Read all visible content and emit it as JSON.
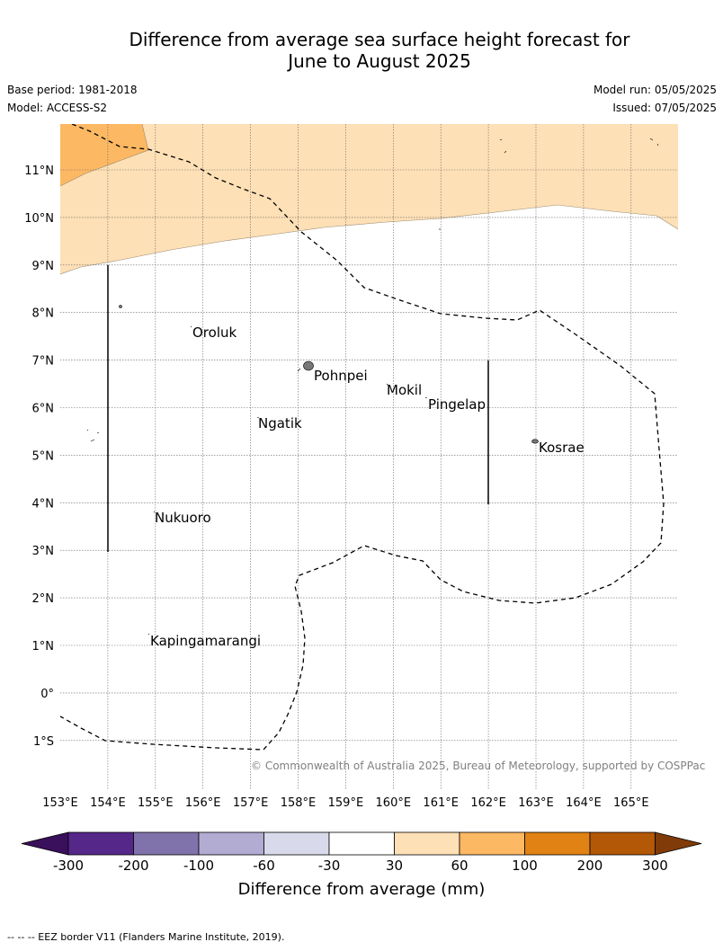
{
  "title": {
    "line1": "Difference from average sea surface height forecast for",
    "line2": "June to August 2025"
  },
  "meta": {
    "base_period": "Base period: 1981-2018",
    "model": "Model: ACCESS-S2",
    "model_run": "Model run: 05/05/2025",
    "issued": "Issued: 07/05/2025"
  },
  "map": {
    "lat_labels": [
      "11°N",
      "10°N",
      "9°N",
      "8°N",
      "7°N",
      "6°N",
      "5°N",
      "4°N",
      "3°N",
      "2°N",
      "1°N",
      "0°",
      "1°S"
    ],
    "lon_labels": [
      "153°E",
      "154°E",
      "155°E",
      "156°E",
      "157°E",
      "158°E",
      "159°E",
      "160°E",
      "161°E",
      "162°E",
      "163°E",
      "164°E",
      "165°E"
    ],
    "places": [
      "Oroluk",
      "Pohnpei",
      "Mokil",
      "Pingelap",
      "Ngatik",
      "Kosrae",
      "Nukuoro",
      "Kapingamarangi"
    ],
    "credit": "© Commonwealth of Australia 2025, Bureau of Meteorology, supported by COSPPac"
  },
  "colorbar": {
    "title": "Difference from average (mm)",
    "ticks": [
      "-300",
      "-200",
      "-100",
      "-60",
      "-30",
      "30",
      "60",
      "100",
      "200",
      "300"
    ],
    "colors": [
      "#3a0f5c",
      "#542788",
      "#8073ac",
      "#b2abd2",
      "#d8daeb",
      "#ffffff",
      "#fee0b6",
      "#fdb863",
      "#e08214",
      "#b35806",
      "#7f3b08"
    ]
  },
  "footnote": "--  --  -- EEZ border V11 (Flanders Marine Institute, 2019)."
}
